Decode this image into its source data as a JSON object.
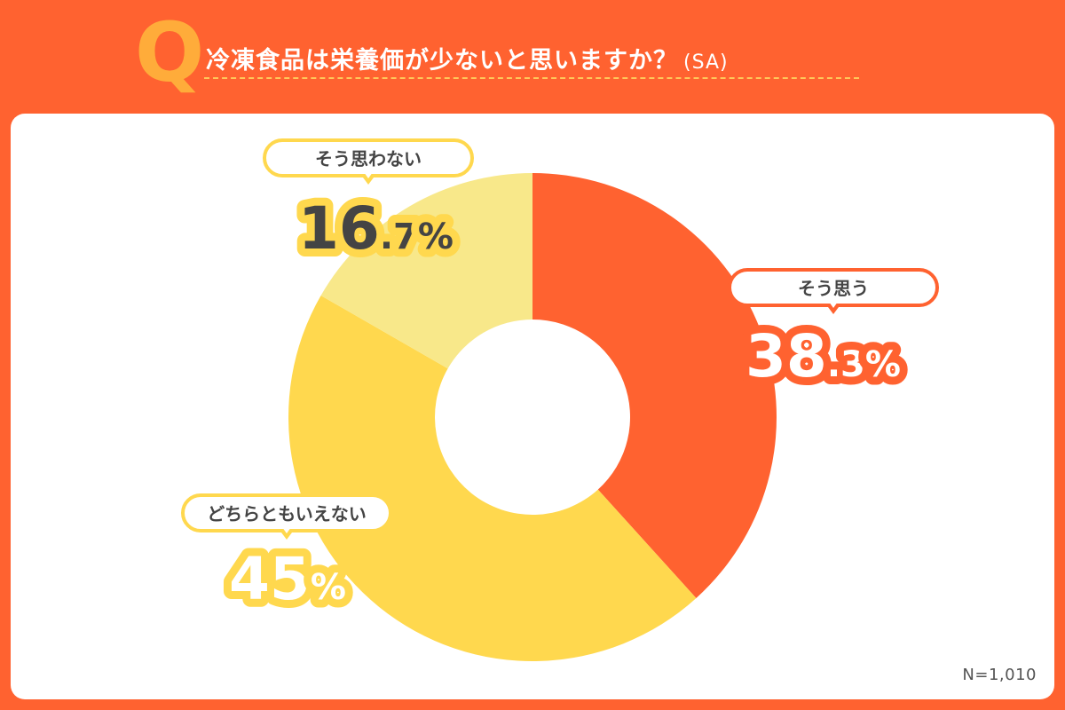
{
  "header": {
    "q_letter": "Q",
    "question": "冷凍食品は栄養価が少ないと思いますか？",
    "question_tag": "(SA)"
  },
  "sample_size": "N=1,010",
  "colors": {
    "background": "#ff6230",
    "q_letter": "#ffac3a",
    "text_dark": "#444444"
  },
  "chart_data": {
    "type": "pie",
    "donut": true,
    "unit": "%",
    "slices": [
      {
        "label": "そう思う",
        "value": 38.3,
        "int": "38",
        "dec": ".3",
        "pct": "%",
        "color": "#ff6230",
        "text_color": "#ffffff",
        "outline": "#ff6230"
      },
      {
        "label": "どちらともいえない",
        "value": 45.0,
        "int": "45",
        "dec": "",
        "pct": "%",
        "color": "#ffd84e",
        "text_color": "#ffffff",
        "outline": "#ffd84e"
      },
      {
        "label": "そう思わない",
        "value": 16.7,
        "int": "16",
        "dec": ".7",
        "pct": "%",
        "color": "#f8e88a",
        "text_color": "#444444",
        "outline": "#ffd84e"
      }
    ]
  }
}
